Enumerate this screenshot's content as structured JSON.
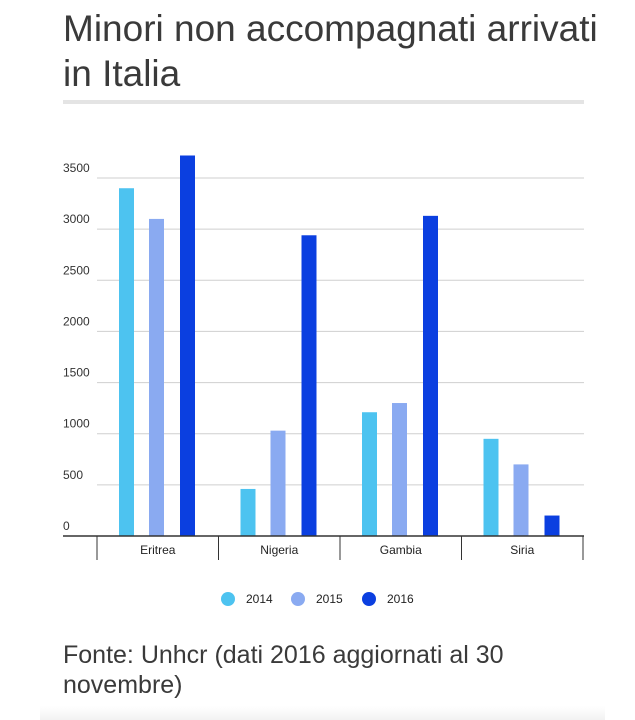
{
  "title": "Minori non accompagnati arrivati in Italia",
  "source": "Fonte: Unhcr (dati 2016 aggiornati al 30 novembre)",
  "chart_data": {
    "type": "bar",
    "title": "",
    "xlabel": "",
    "ylabel": "",
    "categories": [
      "Eritrea",
      "Nigeria",
      "Gambia",
      "Siria"
    ],
    "series": [
      {
        "name": "2014",
        "color": "#4dc3f0",
        "values": [
          3400,
          460,
          1210,
          950
        ]
      },
      {
        "name": "2015",
        "color": "#8aaaf1",
        "values": [
          3100,
          1030,
          1300,
          700
        ]
      },
      {
        "name": "2016",
        "color": "#0b3fe0",
        "values": [
          3720,
          2940,
          3130,
          200
        ]
      }
    ],
    "ylim": [
      0,
      3500
    ],
    "yticks": [
      "0",
      "500",
      "1000",
      "1500",
      "2000",
      "2500",
      "3000",
      "3500"
    ],
    "grid": true,
    "legend_position": "bottom"
  }
}
